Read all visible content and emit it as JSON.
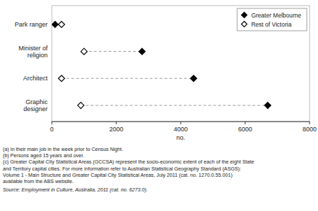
{
  "chart_data": {
    "type": "dot",
    "orientation": "horizontal",
    "categories": [
      "Park ranger",
      "Minister of\nreligion",
      "Architect",
      "Graphic\ndesigner"
    ],
    "series": [
      {
        "name": "Greater Melbourne",
        "color": "#000000",
        "marker": "diamond",
        "values": [
          100,
          2800,
          4400,
          6700
        ]
      },
      {
        "name": "Rest of Victoria",
        "color": "#000000",
        "marker": "diamond-open",
        "values": [
          300,
          1000,
          300,
          900
        ]
      }
    ],
    "xlabel": "no.",
    "xlim": [
      0,
      8000
    ],
    "xticks": [
      0,
      2000,
      4000,
      6000,
      8000
    ],
    "legend": "upper right",
    "grid": false,
    "annotations": [
      "(a) In their main job in the week prior to Census Night.",
      "(b) Persons aged 15 years and over.",
      "(c) Greater Capital City Statistical Areas (GCCSA) represent the socio-economic extent of each of the eight State",
      "and Territory capital cities. For more information refer to Australian Statistical Geography Standard (ASGS):",
      "Volume 1 - Main Structure and Greater Capital City Statistical Areas, July 2011 (cat. no. 1270.0.55.001)",
      "available from the ABS website."
    ],
    "source": "Source: Employment in Culture, Australia, 2011 (cat. no. 6273.0)."
  }
}
